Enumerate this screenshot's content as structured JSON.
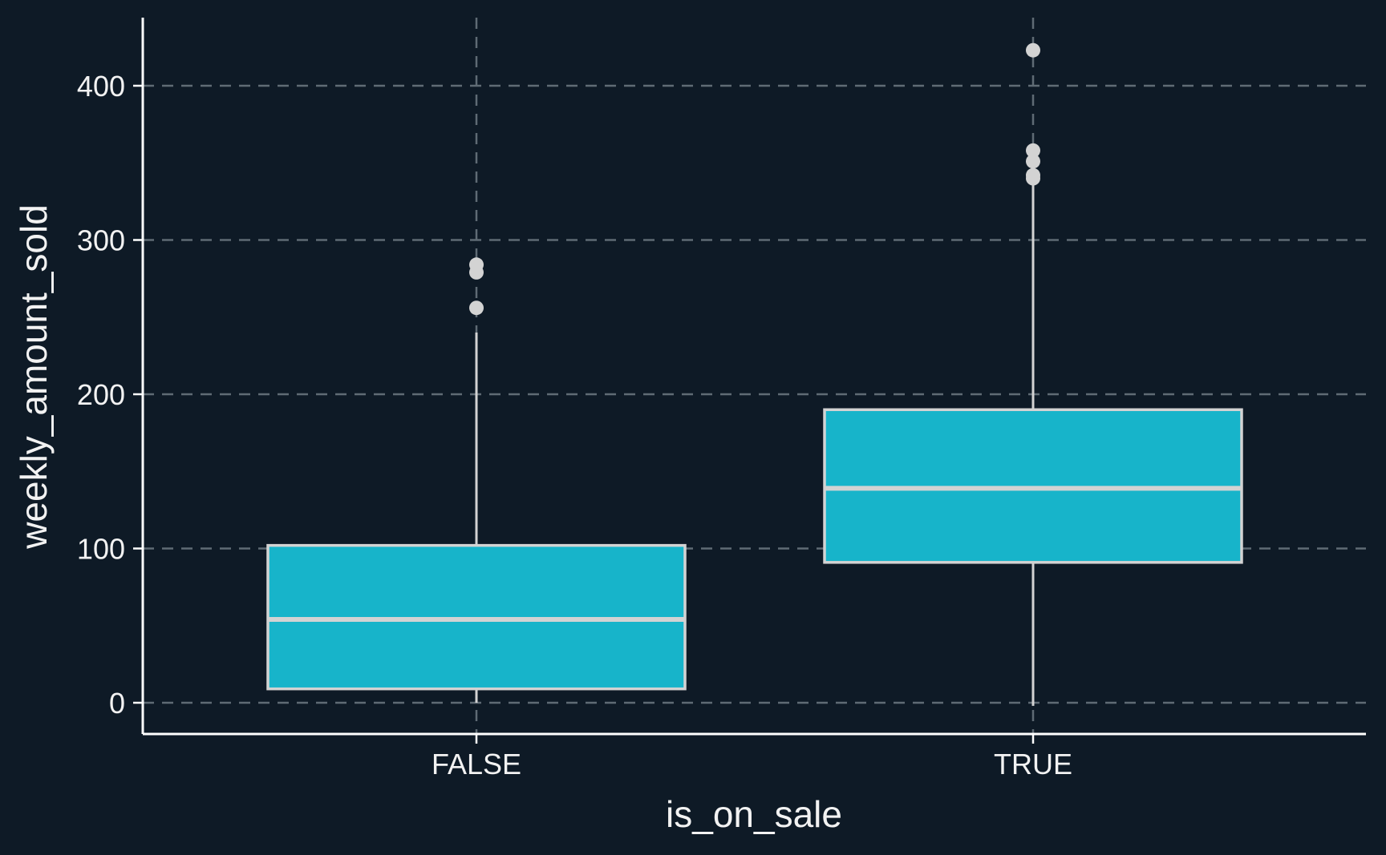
{
  "chart_data": {
    "type": "boxplot",
    "xlabel": "is_on_sale",
    "ylabel": "weekly_amount_sold",
    "categories": [
      "FALSE",
      "TRUE"
    ],
    "yticks": [
      0,
      100,
      200,
      300,
      400
    ],
    "ylim": [
      -20,
      445
    ],
    "grid": true,
    "boxes": [
      {
        "category": "FALSE",
        "whisker_low": 0,
        "q1": 9,
        "median": 54,
        "q3": 102,
        "whisker_high": 240,
        "outliers": [
          256,
          279,
          284
        ]
      },
      {
        "category": "TRUE",
        "whisker_low": -2,
        "q1": 91,
        "median": 139,
        "q3": 190,
        "whisker_high": 337,
        "outliers": [
          340,
          342,
          351,
          358,
          423
        ]
      }
    ],
    "colors": {
      "background": "#0e1a26",
      "box_fill": "#17b4ca",
      "box_outline": "#d3d3d3",
      "grid": "#5f6b74",
      "axis": "#ffffff",
      "text": "#f2f2f2"
    }
  }
}
